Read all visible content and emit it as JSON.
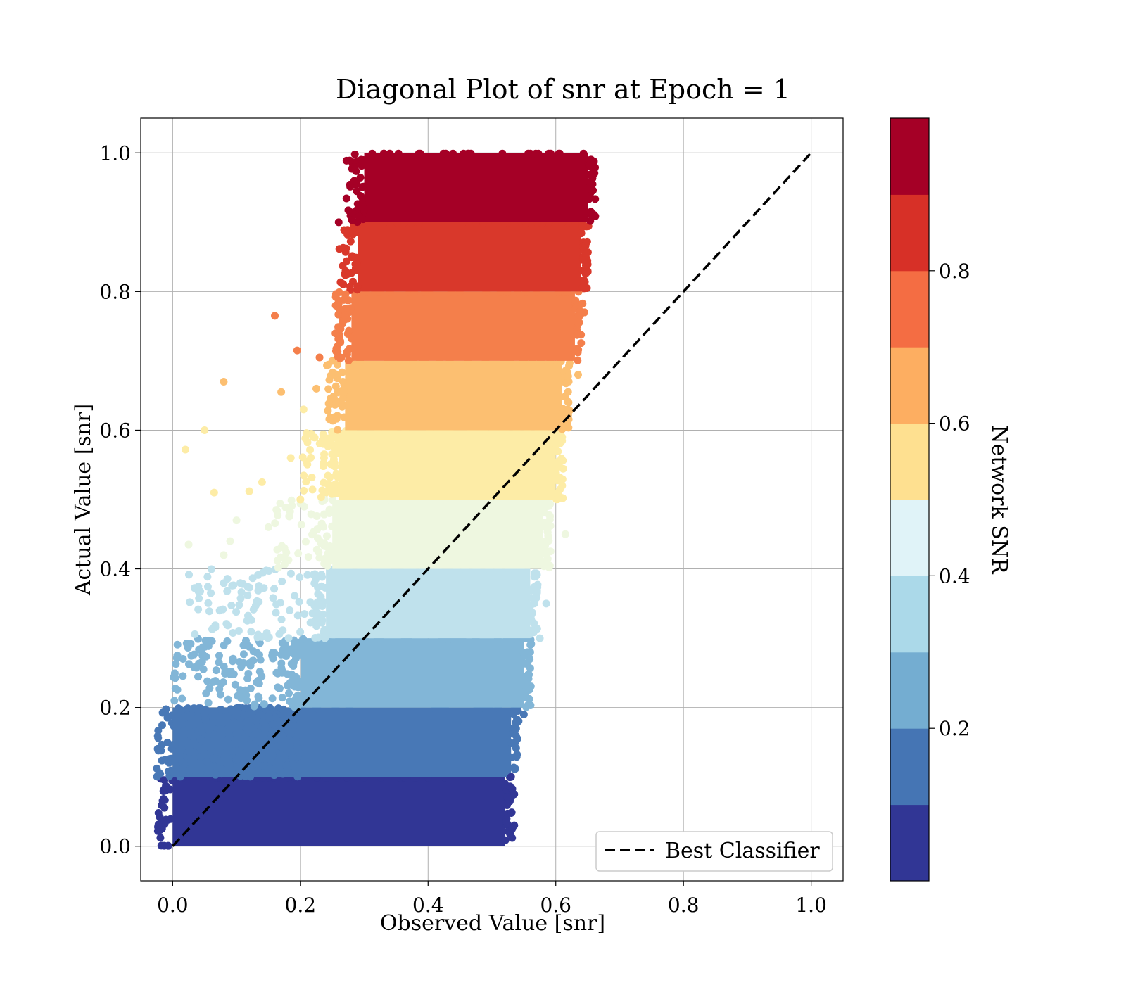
{
  "chart_data": {
    "type": "scatter",
    "title": "Diagonal Plot of snr at Epoch = 1",
    "xlabel": "Observed Value [snr]",
    "ylabel": "Actual Value [snr]",
    "xlim": [
      -0.05,
      1.05
    ],
    "ylim": [
      -0.05,
      1.05
    ],
    "xticks": [
      "0.0",
      "0.2",
      "0.4",
      "0.6",
      "0.8",
      "1.0"
    ],
    "yticks": [
      "0.0",
      "0.2",
      "0.4",
      "0.6",
      "0.8",
      "1.0"
    ],
    "grid": true,
    "legend": {
      "position": "bottom-right",
      "label": "Best Classifier"
    },
    "reference_line": {
      "name": "Best Classifier",
      "x": [
        0,
        1
      ],
      "y": [
        0,
        1
      ],
      "style": "dashed",
      "color": "#000000"
    },
    "colorbar": {
      "label": "Network SNR",
      "ticks": [
        "0.2",
        "0.4",
        "0.6",
        "0.8"
      ],
      "range": [
        0.0,
        1.0
      ],
      "colors": [
        "#313695",
        "#4575b4",
        "#74add1",
        "#abd9e9",
        "#e0f3f8",
        "#fee090",
        "#fdae61",
        "#f46d43",
        "#d73027",
        "#a50026"
      ]
    },
    "bands": [
      {
        "y_range": [
          0.0,
          0.1
        ],
        "x_core": [
          0.0,
          0.52
        ],
        "color": "#313695"
      },
      {
        "y_range": [
          0.1,
          0.2
        ],
        "x_core": [
          0.0,
          0.53
        ],
        "color": "#4878b6"
      },
      {
        "y_range": [
          0.2,
          0.3
        ],
        "x_core": [
          0.2,
          0.55
        ],
        "color": "#82b6d7"
      },
      {
        "y_range": [
          0.3,
          0.4
        ],
        "x_core": [
          0.24,
          0.56
        ],
        "color": "#bfe1ec"
      },
      {
        "y_range": [
          0.4,
          0.5
        ],
        "x_core": [
          0.25,
          0.58
        ],
        "color": "#eef7e0"
      },
      {
        "y_range": [
          0.5,
          0.6
        ],
        "x_core": [
          0.26,
          0.6
        ],
        "color": "#fdeca6"
      },
      {
        "y_range": [
          0.6,
          0.7
        ],
        "x_core": [
          0.27,
          0.61
        ],
        "color": "#fcbf71"
      },
      {
        "y_range": [
          0.7,
          0.8
        ],
        "x_core": [
          0.28,
          0.63
        ],
        "color": "#f47f4b"
      },
      {
        "y_range": [
          0.8,
          0.9
        ],
        "x_core": [
          0.29,
          0.64
        ],
        "color": "#d9382b"
      },
      {
        "y_range": [
          0.9,
          1.0
        ],
        "x_core": [
          0.3,
          0.65
        ],
        "color": "#a50026"
      }
    ],
    "outlier_points": [
      [
        0.16,
        0.765,
        "#f47f4b"
      ],
      [
        0.195,
        0.715,
        "#f47f4b"
      ],
      [
        0.23,
        0.705,
        "#f47f4b"
      ],
      [
        0.08,
        0.67,
        "#fcbf71"
      ],
      [
        0.17,
        0.655,
        "#fcbf71"
      ],
      [
        0.225,
        0.66,
        "#fcbf71"
      ],
      [
        0.205,
        0.63,
        "#fdeca6"
      ],
      [
        0.05,
        0.6,
        "#fdeca6"
      ],
      [
        0.02,
        0.572,
        "#fdeca6"
      ],
      [
        0.185,
        0.56,
        "#fdeca6"
      ],
      [
        0.14,
        0.525,
        "#fdeca6"
      ],
      [
        0.065,
        0.51,
        "#fdeca6"
      ],
      [
        0.12,
        0.512,
        "#fdeca6"
      ],
      [
        0.2,
        0.5,
        "#fdeca6"
      ],
      [
        0.22,
        0.59,
        "#fdeca6"
      ],
      [
        0.1,
        0.47,
        "#eef7e0"
      ],
      [
        0.025,
        0.435,
        "#eef7e0"
      ],
      [
        0.09,
        0.44,
        "#eef7e0"
      ],
      [
        0.15,
        0.46,
        "#eef7e0"
      ],
      [
        0.175,
        0.43,
        "#eef7e0"
      ],
      [
        0.08,
        0.42,
        "#eef7e0"
      ],
      [
        0.66,
        0.98,
        "#a50026"
      ],
      [
        0.655,
        0.915,
        "#a50026"
      ],
      [
        0.26,
        0.9,
        "#a50026"
      ],
      [
        0.645,
        0.77,
        "#f47f4b"
      ],
      [
        0.635,
        0.68,
        "#fcbf71"
      ],
      [
        0.62,
        0.64,
        "#fcbf71"
      ],
      [
        0.61,
        0.59,
        "#fdeca6"
      ],
      [
        0.61,
        0.52,
        "#fdeca6"
      ],
      [
        0.615,
        0.45,
        "#eef7e0"
      ],
      [
        0.585,
        0.35,
        "#bfe1ec"
      ],
      [
        0.575,
        0.3,
        "#bfe1ec"
      ],
      [
        0.56,
        0.28,
        "#82b6d7"
      ],
      [
        0.545,
        0.235,
        "#82b6d7"
      ],
      [
        0.55,
        0.19,
        "#4878b6"
      ],
      [
        0.54,
        0.155,
        "#4878b6"
      ],
      [
        0.53,
        0.1,
        "#313695"
      ],
      [
        0.535,
        0.075,
        "#313695"
      ],
      [
        0.535,
        0.03,
        "#313695"
      ]
    ]
  }
}
